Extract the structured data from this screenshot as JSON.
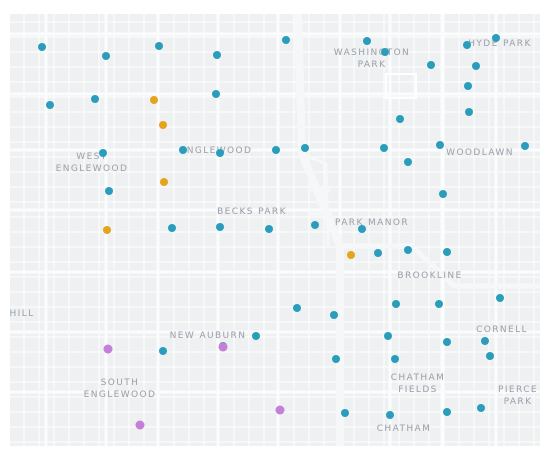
{
  "colors": {
    "background": "#eef0f2",
    "minor_street": "#ffffff",
    "major_street": "#fbfcfd",
    "highway": "#f6f7f9",
    "label": "#9aa1a8",
    "blue": "#2a9dbd",
    "orange": "#e4a51d",
    "purple": "#c47fd8"
  },
  "labels": [
    {
      "id": "washington-park",
      "text": "WASHINGTON\nPARK"
    },
    {
      "id": "hyde-park",
      "text": "HYDE PARK"
    },
    {
      "id": "west-englewood",
      "text": "WEST\nENGLEWOOD"
    },
    {
      "id": "englewood",
      "text": "ENGLEWOOD"
    },
    {
      "id": "woodlawn",
      "text": "WOODLAWN"
    },
    {
      "id": "becks-park",
      "text": "BECKS PARK"
    },
    {
      "id": "park-manor",
      "text": "PARK MANOR"
    },
    {
      "id": "brookline",
      "text": "BROOKLINE"
    },
    {
      "id": "hill",
      "text": "HILL"
    },
    {
      "id": "new-auburn",
      "text": "NEW AUBURN"
    },
    {
      "id": "cornell",
      "text": "CORNELL"
    },
    {
      "id": "south-englewood",
      "text": "SOUTH\nENGLEWOOD"
    },
    {
      "id": "chatham-fields",
      "text": "CHATHAM\nFIELDS"
    },
    {
      "id": "pierce-park",
      "text": "PIERCE\nPARK"
    },
    {
      "id": "chatham",
      "text": "CHATHAM"
    }
  ],
  "markers": [
    {
      "c": "blue"
    },
    {
      "c": "blue"
    },
    {
      "c": "blue"
    },
    {
      "c": "blue"
    },
    {
      "c": "blue"
    },
    {
      "c": "blue"
    },
    {
      "c": "blue"
    },
    {
      "c": "blue"
    },
    {
      "c": "blue"
    },
    {
      "c": "blue"
    },
    {
      "c": "blue"
    },
    {
      "c": "blue"
    },
    {
      "c": "blue"
    },
    {
      "c": "blue"
    },
    {
      "c": "blue"
    },
    {
      "c": "blue"
    },
    {
      "c": "blue"
    },
    {
      "c": "blue"
    },
    {
      "c": "blue"
    },
    {
      "c": "blue"
    },
    {
      "c": "blue"
    },
    {
      "c": "blue"
    },
    {
      "c": "blue"
    },
    {
      "c": "blue"
    },
    {
      "c": "blue"
    },
    {
      "c": "blue"
    },
    {
      "c": "blue"
    },
    {
      "c": "blue"
    },
    {
      "c": "blue"
    },
    {
      "c": "blue"
    },
    {
      "c": "blue"
    },
    {
      "c": "blue"
    },
    {
      "c": "blue"
    },
    {
      "c": "blue"
    },
    {
      "c": "blue"
    },
    {
      "c": "blue"
    },
    {
      "c": "blue"
    },
    {
      "c": "blue"
    },
    {
      "c": "blue"
    },
    {
      "c": "blue"
    },
    {
      "c": "blue"
    },
    {
      "c": "blue"
    },
    {
      "c": "blue"
    },
    {
      "c": "blue"
    },
    {
      "c": "blue"
    },
    {
      "c": "blue"
    },
    {
      "c": "blue"
    },
    {
      "c": "blue"
    },
    {
      "c": "blue"
    },
    {
      "c": "blue"
    },
    {
      "c": "blue"
    },
    {
      "c": "blue"
    },
    {
      "c": "blue"
    },
    {
      "c": "blue"
    },
    {
      "c": "orange"
    },
    {
      "c": "orange"
    },
    {
      "c": "orange"
    },
    {
      "c": "orange"
    },
    {
      "c": "orange"
    },
    {
      "c": "purple"
    },
    {
      "c": "purple"
    },
    {
      "c": "purple"
    },
    {
      "c": "purple"
    }
  ]
}
